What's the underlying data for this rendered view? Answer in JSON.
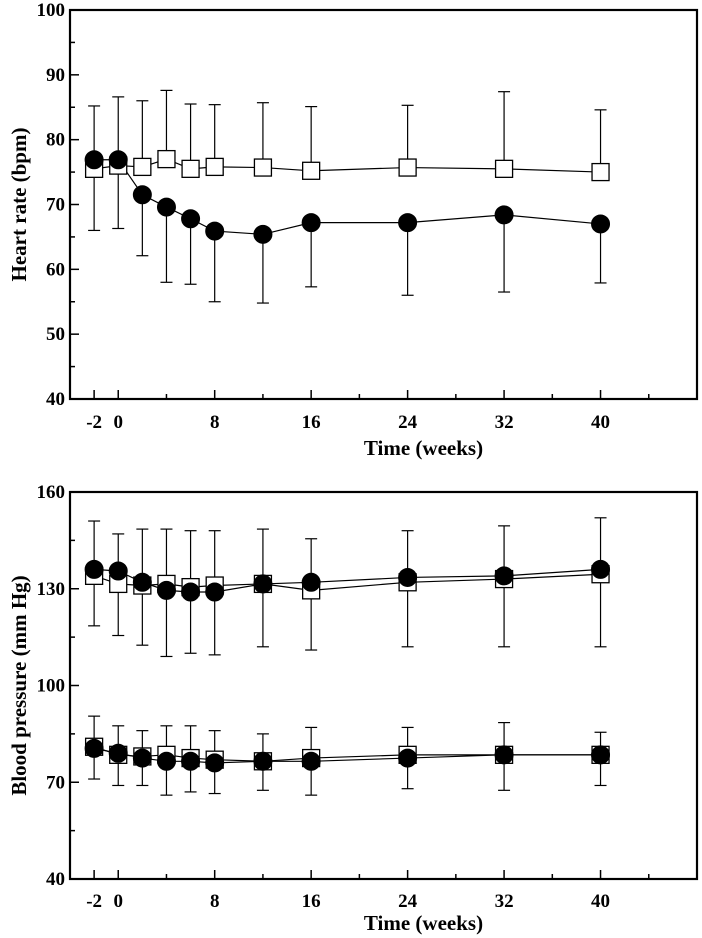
{
  "chart_data": [
    {
      "type": "line",
      "xlabel": "Time (weeks)",
      "ylabel": "Heart rate (bpm)",
      "xlim": [
        -4,
        48
      ],
      "ylim": [
        40,
        100
      ],
      "xticks": [
        -2,
        0,
        8,
        16,
        24,
        32,
        40
      ],
      "yticks": [
        40,
        50,
        60,
        70,
        80,
        90,
        100
      ],
      "x": [
        -2,
        0,
        2,
        4,
        6,
        8,
        12,
        16,
        24,
        32,
        40
      ],
      "series": [
        {
          "marker": "open-square",
          "values": [
            75.5,
            76.0,
            75.8,
            77.0,
            75.5,
            75.8,
            75.7,
            75.2,
            75.7,
            75.5,
            75.0
          ],
          "error_upper": [
            85.2,
            86.6,
            86.0,
            87.6,
            85.5,
            85.4,
            85.7,
            85.1,
            85.3,
            87.4,
            84.6
          ]
        },
        {
          "marker": "filled-circle",
          "values": [
            76.9,
            76.9,
            71.5,
            69.6,
            67.8,
            65.9,
            65.4,
            67.2,
            67.2,
            68.4,
            67.0
          ],
          "error_lower": [
            66.0,
            66.3,
            62.1,
            58.0,
            57.7,
            55.0,
            54.8,
            57.3,
            56.0,
            56.5,
            57.9
          ]
        }
      ]
    },
    {
      "type": "line",
      "xlabel": "Time (weeks)",
      "ylabel": "Blood pressure (mm Hg)",
      "xlim": [
        -4,
        48
      ],
      "ylim": [
        40,
        160
      ],
      "xticks": [
        -2,
        0,
        8,
        16,
        24,
        32,
        40
      ],
      "yticks": [
        40,
        70,
        100,
        130,
        160
      ],
      "x": [
        -2,
        0,
        2,
        4,
        6,
        8,
        12,
        16,
        24,
        32,
        40
      ],
      "series": [
        {
          "marker": "open-square",
          "values": [
            134.0,
            131.5,
            131.0,
            131.5,
            130.5,
            131.0,
            131.5,
            129.5,
            132.0,
            133.0,
            134.5
          ],
          "error_upper": [
            151.0,
            147.0,
            148.5,
            148.5,
            148.0,
            148.0,
            148.5,
            145.5,
            148.0,
            149.5,
            152.0
          ]
        },
        {
          "marker": "filled-circle",
          "values": [
            136.0,
            135.5,
            132.0,
            129.5,
            129.0,
            129.0,
            131.5,
            132.0,
            133.5,
            134.0,
            136.0
          ],
          "error_lower": [
            118.5,
            115.5,
            112.5,
            109.0,
            110.0,
            109.5,
            112.0,
            111.0,
            112.0,
            112.0,
            112.0
          ]
        },
        {
          "marker": "open-square",
          "values": [
            81.0,
            78.5,
            78.0,
            78.5,
            77.5,
            77.0,
            76.5,
            77.5,
            78.5,
            78.5,
            78.5
          ],
          "error_upper": [
            90.5,
            87.5,
            86.0,
            87.5,
            87.5,
            86.0,
            85.0,
            87.0,
            87.0,
            88.5,
            85.5
          ]
        },
        {
          "marker": "filled-circle",
          "values": [
            80.5,
            79.0,
            77.5,
            76.5,
            76.5,
            76.0,
            76.5,
            76.5,
            77.5,
            78.5,
            78.5
          ],
          "error_lower": [
            71.0,
            69.0,
            69.0,
            66.0,
            67.0,
            66.5,
            67.5,
            66.0,
            68.0,
            67.5,
            69.0
          ]
        }
      ]
    }
  ]
}
